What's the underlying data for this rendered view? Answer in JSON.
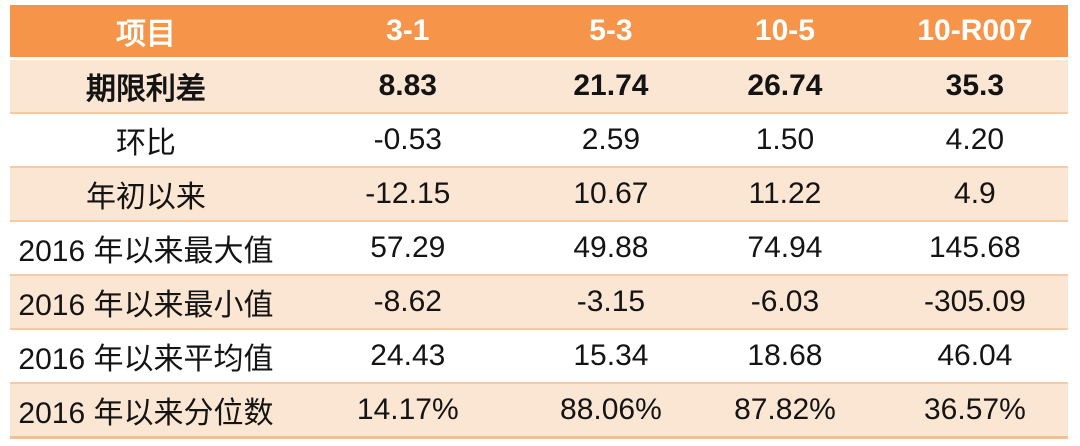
{
  "chart_data": {
    "type": "table",
    "title": "",
    "columns": [
      "项目",
      "3-1",
      "5-3",
      "10-5",
      "10-R007"
    ],
    "rows": [
      {
        "label": "期限利差",
        "values": [
          "8.83",
          "21.74",
          "26.74",
          "35.3"
        ],
        "emphasis": true
      },
      {
        "label": "环比",
        "values": [
          "-0.53",
          "2.59",
          "1.50",
          "4.20"
        ],
        "emphasis": false
      },
      {
        "label": "年初以来",
        "values": [
          "-12.15",
          "10.67",
          "11.22",
          "4.9"
        ],
        "emphasis": false
      },
      {
        "label": "2016 年以来最大值",
        "values": [
          "57.29",
          "49.88",
          "74.94",
          "145.68"
        ],
        "emphasis": false
      },
      {
        "label": "2016 年以来最小值",
        "values": [
          "-8.62",
          "-3.15",
          "-6.03",
          "-305.09"
        ],
        "emphasis": false
      },
      {
        "label": "2016 年以来平均值",
        "values": [
          "24.43",
          "15.34",
          "18.68",
          "46.04"
        ],
        "emphasis": false
      },
      {
        "label": "2016 年以来分位数",
        "values": [
          "14.17%",
          "88.06%",
          "87.82%",
          "36.57%"
        ],
        "emphasis": false
      }
    ],
    "layout": {
      "column_width_percents": [
        25.7,
        23.8,
        14.6,
        18.3,
        17.6
      ]
    },
    "colors": {
      "header_background": "#f6954a",
      "header_text": "#ffffff",
      "stripe_row_background": "#fbe6d3",
      "plain_row_background": "#ffffff",
      "row_separator": "#f4cba3",
      "bottom_border": "#f3bf93",
      "body_text": "#141414"
    }
  }
}
